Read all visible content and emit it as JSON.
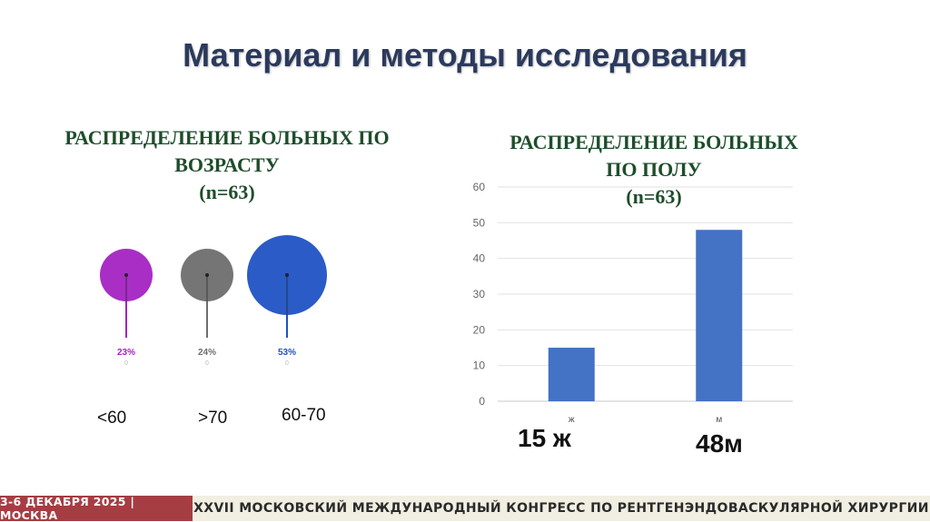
{
  "slide": {
    "title": "Материал и методы исследования"
  },
  "age_section": {
    "heading": [
      "РАСПРЕДЕЛЕНИЕ БОЛЬНЫХ ПО",
      "ВОЗРАСТУ",
      "(n=63)"
    ],
    "groups": [
      {
        "label": "<60",
        "percent": "23%",
        "value": 23,
        "sub": "0",
        "color": "#a323c2"
      },
      {
        "label": ">70",
        "percent": "24%",
        "value": 24,
        "sub": "0",
        "color": "#6e6e6e"
      },
      {
        "label": "60-70",
        "percent": "53%",
        "value": 53,
        "sub": "0",
        "color": "#1f52c4"
      }
    ]
  },
  "sex_section": {
    "heading": [
      "РАСПРЕДЕЛЕНИЕ БОЛЬНЫХ",
      "ПО ПОЛУ",
      "(n=63)"
    ],
    "big_labels": [
      "15 ж",
      "48м"
    ]
  },
  "chart_data": [
    {
      "type": "bar",
      "categories": [
        "<60",
        ">70",
        "60-70"
      ],
      "values": [
        23,
        24,
        53
      ],
      "value_labels": [
        "23%",
        "24%",
        "53%"
      ],
      "title": "РАСПРЕДЕЛЕНИЕ БОЛЬНЫХ ПО ВОЗРАСТУ (n=63)",
      "colors": [
        "#a323c2",
        "#6e6e6e",
        "#1f52c4"
      ]
    },
    {
      "type": "bar",
      "categories": [
        "ж",
        "м"
      ],
      "values": [
        15,
        48
      ],
      "ylim": [
        0,
        60
      ],
      "yticks": [
        0,
        10,
        20,
        30,
        40,
        50,
        60
      ],
      "grid": true,
      "title": "РАСПРЕДЕЛЕНИЕ БОЛЬНЫХ ПО ПОЛУ (n=63)",
      "color": "#4472c4"
    }
  ],
  "footer": {
    "left": "3-6 ДЕКАБРЯ 2025 | МОСКВА",
    "right": "XXVII МОСКОВСКИЙ МЕЖДУНАРОДНЫЙ КОНГРЕСС ПО РЕНТГЕНЭНДОВАСКУЛЯРНОЙ ХИРУРГИИ",
    "left_color": "#a63d43",
    "right_color": "#f1eee2"
  }
}
